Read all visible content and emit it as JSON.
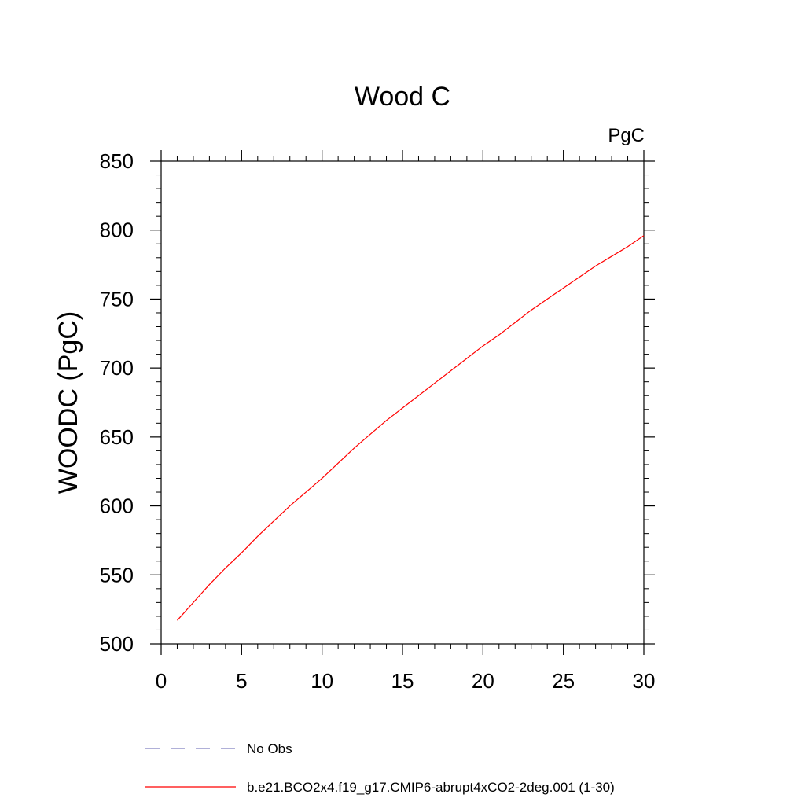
{
  "chart_data": {
    "type": "line",
    "title": "Wood C",
    "units_label": "PgC",
    "ylabel": "WOODC  (PgC)",
    "xlabel": "",
    "xlim": [
      0,
      30
    ],
    "ylim": [
      500,
      850
    ],
    "xticks": [
      0,
      5,
      10,
      15,
      20,
      25,
      30
    ],
    "yticks": [
      500,
      550,
      600,
      650,
      700,
      750,
      800,
      850
    ],
    "x_minor_step": 1,
    "y_minor_step": 10,
    "grid": false,
    "legend_position": "bottom",
    "series": [
      {
        "name": "No Obs",
        "style": "dashed",
        "color": "#8080c0",
        "x": [],
        "y": []
      },
      {
        "name": "b.e21.BCO2x4.f19_g17.CMIP6-abrupt4xCO2-2deg.001 (1-30)",
        "style": "solid",
        "color": "#ff0000",
        "x": [
          1,
          2,
          3,
          4,
          5,
          6,
          7,
          8,
          9,
          10,
          11,
          12,
          13,
          14,
          15,
          16,
          17,
          18,
          19,
          20,
          21,
          22,
          23,
          24,
          25,
          26,
          27,
          28,
          29,
          30
        ],
        "y": [
          517,
          530,
          543,
          555,
          566,
          578,
          589,
          600,
          610,
          620,
          631,
          642,
          652,
          662,
          671,
          680,
          689,
          698,
          707,
          716,
          724,
          733,
          742,
          750,
          758,
          766,
          774,
          781,
          788,
          796
        ]
      }
    ]
  }
}
